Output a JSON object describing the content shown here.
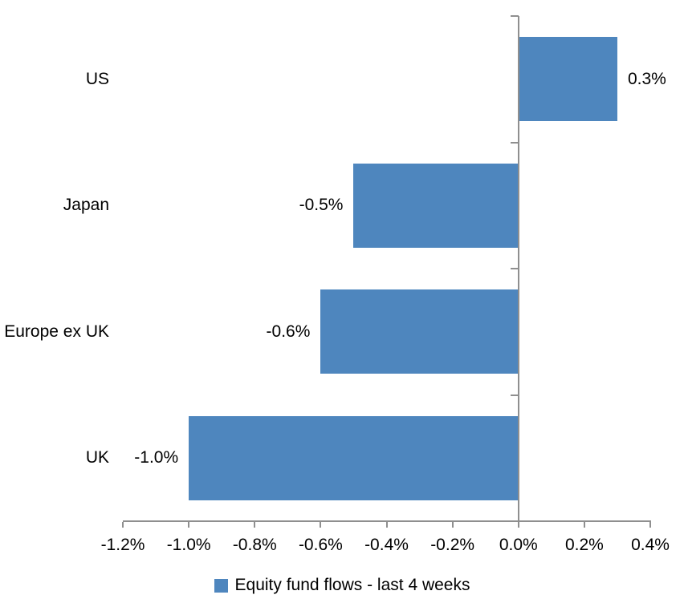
{
  "chart_data": {
    "type": "bar",
    "orientation": "horizontal",
    "title": "",
    "categories": [
      "US",
      "Japan",
      "Europe ex UK",
      "UK"
    ],
    "series": [
      {
        "name": "Equity fund flows - last 4 weeks",
        "values": [
          0.3,
          -0.5,
          -0.6,
          -1.0
        ],
        "data_labels": [
          "0.3%",
          "-0.5%",
          "-0.6%",
          "-1.0%"
        ]
      }
    ],
    "xlim": [
      -1.2,
      0.4
    ],
    "x_tick_step": 0.2,
    "x_tick_labels": [
      "-1.2%",
      "-1.0%",
      "-0.8%",
      "-0.6%",
      "-0.4%",
      "-0.2%",
      "0.0%",
      "0.2%",
      "0.4%"
    ],
    "grid": false,
    "legend_position": "bottom",
    "value_unit": "%",
    "colors": {
      "bar": "#4E86BE",
      "axis": "#8F8F8F",
      "text": "#000000",
      "background": "#FFFFFF"
    }
  }
}
